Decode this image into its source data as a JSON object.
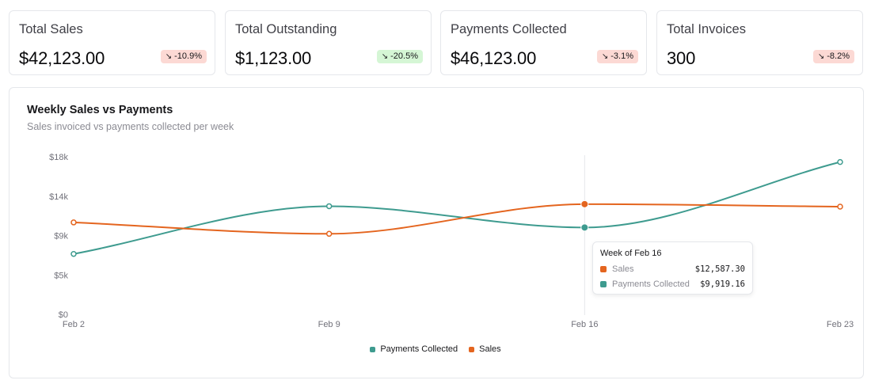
{
  "kpis": [
    {
      "title": "Total Sales",
      "value": "$42,123.00",
      "change": "-10.9%",
      "sentiment": "bad"
    },
    {
      "title": "Total Outstanding",
      "value": "$1,123.00",
      "change": "-20.5%",
      "sentiment": "good"
    },
    {
      "title": "Payments Collected",
      "value": "$46,123.00",
      "change": "-3.1%",
      "sentiment": "bad"
    },
    {
      "title": "Total Invoices",
      "value": "300",
      "change": "-8.2%",
      "sentiment": "bad"
    }
  ],
  "trend_icon": "trend-down-icon",
  "colors": {
    "payments": "#3e9b8f",
    "sales": "#e4651f",
    "badge_bad": "#fcd9d4",
    "badge_good": "#d5f6d5"
  },
  "chart": {
    "title": "Weekly Sales vs Payments",
    "subtitle": "Sales invoiced vs payments collected per week"
  },
  "tooltip": {
    "title": "Week of Feb 16",
    "rows": [
      {
        "label": "Sales",
        "value": "$12,587.30"
      },
      {
        "label": "Payments Collected",
        "value": "$9,919.16"
      }
    ]
  },
  "legend": [
    {
      "label": "Payments Collected"
    },
    {
      "label": "Sales"
    }
  ],
  "chart_data": {
    "type": "line",
    "title": "Weekly Sales vs Payments",
    "subtitle": "Sales invoiced vs payments collected per week",
    "categories": [
      "Feb 2",
      "Feb 9",
      "Feb 16",
      "Feb 23"
    ],
    "y_ticks": [
      0,
      4500,
      9000,
      13500,
      18000
    ],
    "y_tick_labels": [
      "$0",
      "$5k",
      "$9k",
      "$14k",
      "$18k"
    ],
    "ylim": [
      0,
      18000
    ],
    "grid": false,
    "legend_position": "bottom",
    "active_category": "Feb 16",
    "series": [
      {
        "name": "Payments Collected",
        "values": [
          6900,
          12350,
          9919.16,
          17400
        ]
      },
      {
        "name": "Sales",
        "values": [
          10500,
          9200,
          12587.3,
          12300
        ]
      }
    ]
  }
}
